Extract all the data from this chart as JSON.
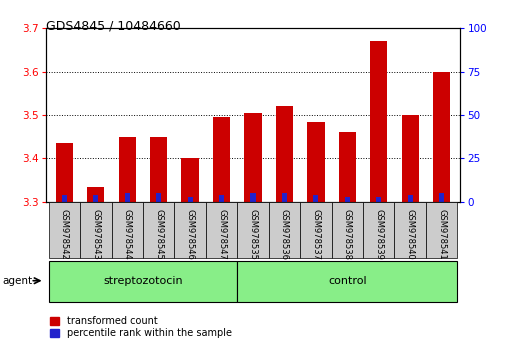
{
  "title": "GDS4845 / 10484660",
  "samples": [
    "GSM978542",
    "GSM978543",
    "GSM978544",
    "GSM978545",
    "GSM978546",
    "GSM978547",
    "GSM978535",
    "GSM978536",
    "GSM978537",
    "GSM978538",
    "GSM978539",
    "GSM978540",
    "GSM978541"
  ],
  "red_values": [
    3.435,
    3.335,
    3.45,
    3.45,
    3.4,
    3.495,
    3.505,
    3.52,
    3.485,
    3.46,
    3.67,
    3.5,
    3.6
  ],
  "blue_percentiles": [
    4,
    4,
    5,
    5,
    3,
    4,
    5,
    5,
    4,
    3,
    3,
    4,
    5
  ],
  "ylim_left": [
    3.3,
    3.7
  ],
  "ylim_right": [
    0,
    100
  ],
  "yticks_left": [
    3.3,
    3.4,
    3.5,
    3.6,
    3.7
  ],
  "yticks_right": [
    0,
    25,
    50,
    75,
    100
  ],
  "group1_label": "streptozotocin",
  "group2_label": "control",
  "group1_count": 6,
  "group2_count": 7,
  "legend_red": "transformed count",
  "legend_blue": "percentile rank within the sample",
  "agent_label": "agent",
  "bar_width": 0.55,
  "red_color": "#cc0000",
  "blue_color": "#2222cc",
  "group_bg_color": "#88ee88",
  "tick_label_bg": "#cccccc",
  "base_value": 3.3
}
